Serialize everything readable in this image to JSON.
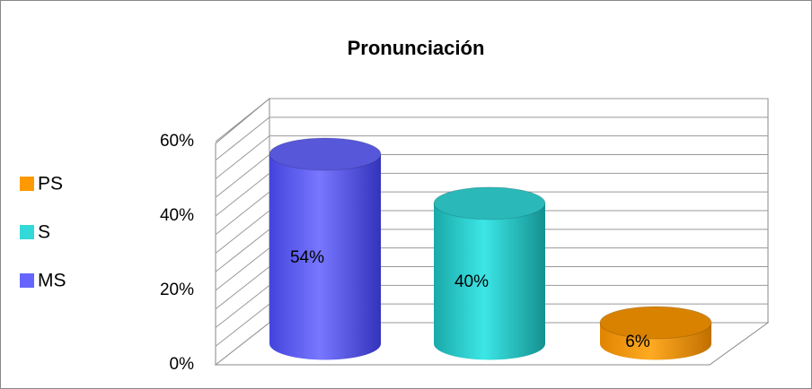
{
  "chart_data": {
    "type": "bar",
    "style": "3d-cylinder",
    "title": "Pronunciación",
    "categories": [
      null
    ],
    "series": [
      {
        "name": "MS",
        "color": "#6666ff",
        "values": [
          54
        ],
        "value_labels": [
          "54%"
        ]
      },
      {
        "name": "S",
        "color": "#33d9d9",
        "values": [
          40
        ],
        "value_labels": [
          "40%"
        ]
      },
      {
        "name": "PS",
        "color": "#ff9900",
        "values": [
          6
        ],
        "value_labels": [
          "6%"
        ]
      }
    ],
    "ylim": [
      0,
      60
    ],
    "yticks": [
      {
        "value": 0,
        "label": "0%"
      },
      {
        "value": 20,
        "label": "20%"
      },
      {
        "value": 40,
        "label": "40%"
      },
      {
        "value": 60,
        "label": "60%"
      }
    ],
    "minor_yticks": [
      5,
      10,
      15,
      25,
      30,
      35,
      45,
      50,
      55
    ],
    "grid": true,
    "legend": "left",
    "legend_order": "reversed"
  }
}
